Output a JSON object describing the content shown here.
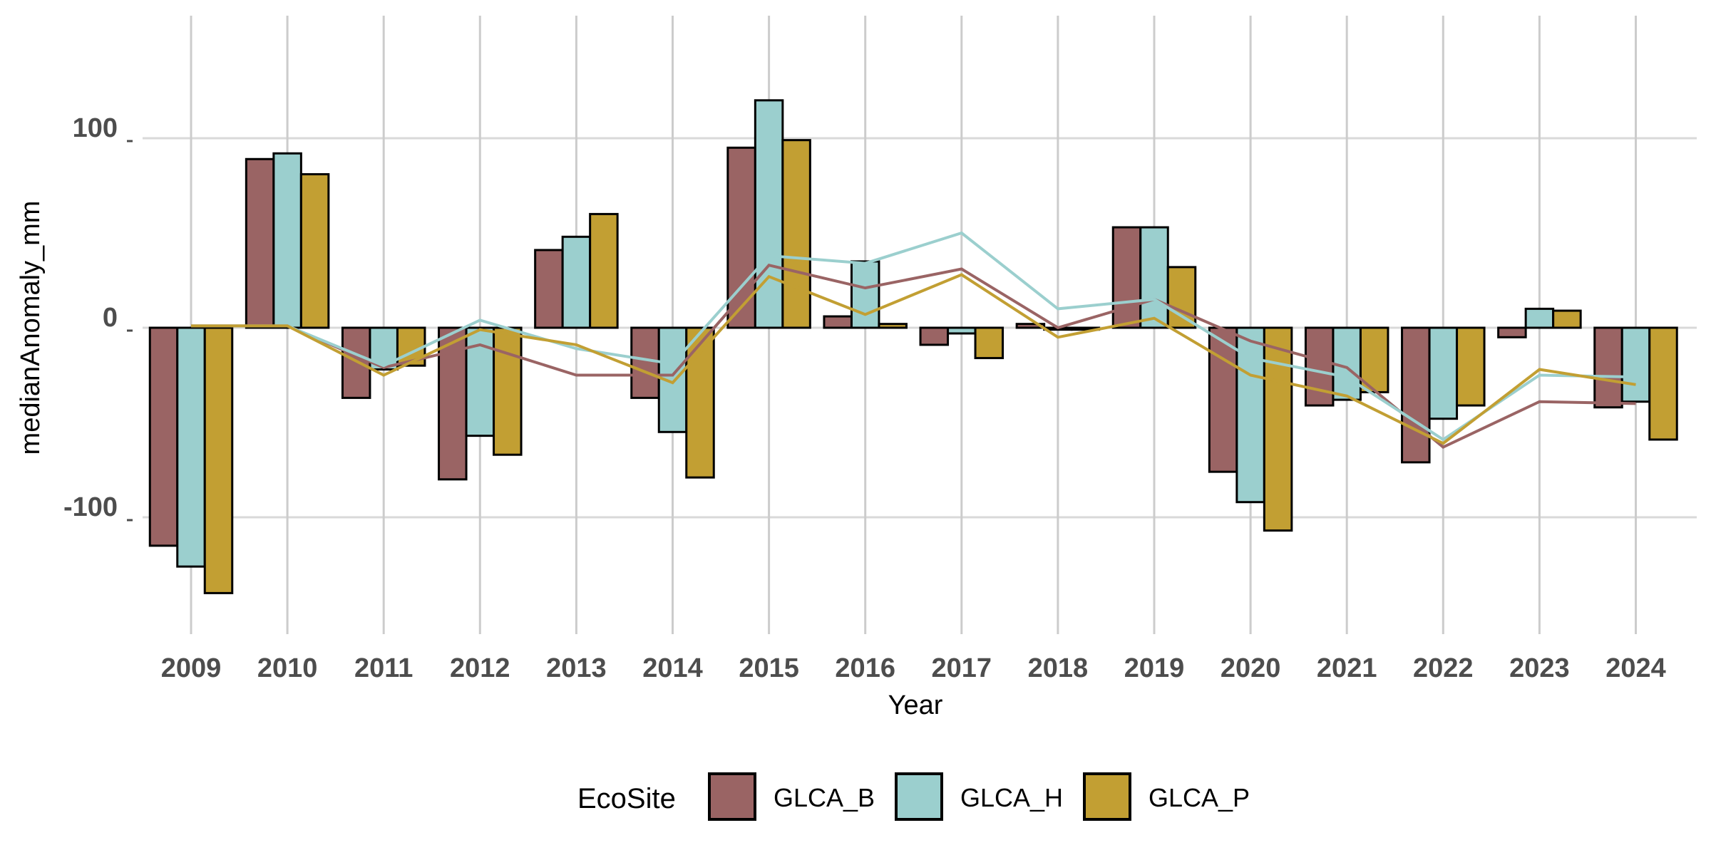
{
  "chart_data": {
    "type": "bar",
    "xlabel": "Year",
    "ylabel": "medianAnomaly_mm",
    "categories": [
      "2009",
      "2010",
      "2011",
      "2012",
      "2013",
      "2014",
      "2015",
      "2016",
      "2017",
      "2018",
      "2019",
      "2020",
      "2021",
      "2022",
      "2023",
      "2024"
    ],
    "yticks": [
      -100,
      0,
      100
    ],
    "ylim": [
      -168,
      165
    ],
    "grid": true,
    "legend": {
      "title": "EcoSite",
      "position": "bottom"
    },
    "series": [
      {
        "name": "GLCA_B",
        "color": "#9A6464",
        "values": [
          -115,
          89,
          -37,
          -80,
          41,
          -37,
          95,
          6,
          -9,
          2,
          53,
          -76,
          -41,
          -71,
          -5,
          -42
        ],
        "line": [
          1,
          1,
          -21,
          -9,
          -25,
          -25,
          33,
          21,
          31,
          0,
          15,
          -7,
          -21,
          -63,
          -39,
          -40
        ]
      },
      {
        "name": "GLCA_H",
        "color": "#9BCFCE",
        "values": [
          -126,
          92,
          -22,
          -57,
          48,
          -55,
          120,
          35,
          -3,
          -1,
          53,
          -92,
          -38,
          -48,
          10,
          -39
        ],
        "line": [
          1,
          1,
          -20,
          4,
          -11,
          -19,
          38,
          34,
          50,
          10,
          15,
          -16,
          -26,
          -59,
          -25,
          -26
        ]
      },
      {
        "name": "GLCA_P",
        "color": "#C29F33",
        "values": [
          -140,
          81,
          -20,
          -67,
          60,
          -79,
          99,
          2,
          -16,
          -1,
          32,
          -107,
          -34,
          -41,
          9,
          -59
        ],
        "line": [
          1,
          1,
          -25,
          -1,
          -9,
          -29,
          27,
          7,
          28,
          -5,
          5,
          -25,
          -36,
          -61,
          -22,
          -30
        ]
      }
    ]
  }
}
